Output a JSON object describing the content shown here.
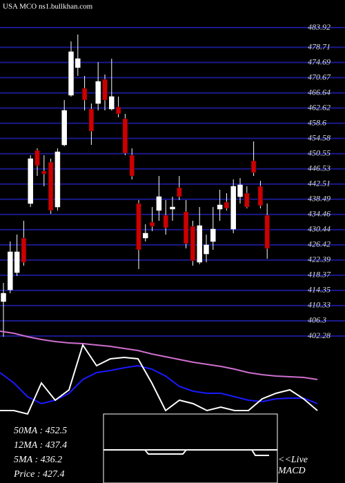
{
  "chart_data": [
    {
      "type": "candlestick",
      "title": "USA MCO ns1.bullkhan.com",
      "categories": [
        null,
        null,
        null,
        null,
        null,
        null,
        null,
        null,
        null,
        null,
        null,
        null,
        null,
        null,
        null,
        null,
        null,
        null,
        null,
        null,
        null,
        null,
        null,
        null,
        null,
        null,
        null,
        null,
        null,
        null,
        null,
        null,
        null,
        null,
        null,
        null,
        null,
        null,
        null,
        null
      ],
      "open": [
        411.41,
        414.51,
        419.08,
        428.22,
        437.35,
        451.41,
        445.93,
        448.3,
        436.43,
        452.87,
        466.02,
        473.33,
        467.85,
        462.37,
        463.83,
        470.22,
        462.37,
        462.92,
        459.81,
        450.13,
        437.35,
        428.22,
        432.41,
        435.52,
        434.24,
        435.88,
        441.55,
        435.16,
        431.32,
        421.82,
        424.01,
        427.3,
        435.88,
        437.71,
        430.59,
        439.17,
        440.09,
        448.67,
        441.91,
        434.24
      ],
      "high": [
        416.34,
        427.3,
        429.13,
        432.78,
        450.13,
        451.96,
        450.13,
        449.22,
        451.96,
        464.74,
        480.27,
        482.09,
        471.14,
        463.83,
        474.79,
        471.5,
        475.7,
        465.66,
        461.09,
        451.96,
        438.26,
        431.87,
        436.43,
        444.65,
        438.26,
        439.17,
        444.65,
        438.26,
        432.78,
        436.43,
        429.13,
        436.43,
        441.0,
        440.09,
        443.74,
        444.1,
        441.91,
        453.78,
        443.37,
        437.35
      ],
      "low": [
        402.09,
        413.6,
        418.17,
        420.91,
        436.43,
        444.65,
        441.91,
        434.61,
        435.52,
        452.5,
        465.66,
        471.14,
        462.0,
        452.87,
        462.0,
        462.0,
        462.0,
        460.18,
        450.13,
        443.74,
        419.99,
        427.3,
        430.04,
        432.78,
        429.13,
        432.78,
        438.26,
        425.47,
        420.91,
        421.27,
        421.82,
        425.11,
        432.78,
        435.52,
        429.49,
        437.35,
        436.07,
        444.65,
        436.07,
        422.73
      ],
      "close": [
        413.6,
        424.56,
        424.56,
        421.82,
        449.22,
        447.39,
        445.2,
        435.52,
        451.04,
        462.0,
        477.53,
        475.7,
        464.74,
        456.52,
        469.67,
        464.74,
        465.66,
        461.09,
        450.68,
        444.65,
        425.11,
        429.49,
        431.32,
        439.17,
        430.95,
        436.43,
        439.17,
        426.75,
        422.19,
        431.5,
        426.39,
        430.59,
        436.98,
        436.07,
        441.91,
        442.28,
        436.43,
        445.56,
        436.8,
        425.47
      ],
      "up_color": "#ffffff",
      "down_color": "#cc0000",
      "grid_color": "#1a1a8c",
      "ylim": [
        402.28,
        483.92
      ],
      "yticks": [
        483.92,
        478.71,
        474.69,
        470.67,
        466.64,
        462.62,
        458.6,
        454.58,
        450.55,
        446.53,
        442.51,
        438.49,
        434.46,
        430.44,
        426.42,
        422.39,
        418.37,
        414.35,
        410.33,
        406.3,
        402.28
      ],
      "grid": true
    },
    {
      "type": "line",
      "categories": [
        null,
        null,
        null,
        null,
        null,
        null,
        null,
        null,
        null,
        null,
        null,
        null,
        null,
        null,
        null,
        null,
        null,
        null,
        null,
        null,
        null,
        null,
        null,
        null
      ],
      "ylim": [
        0,
        120
      ],
      "series": [
        {
          "color": "#d070d0",
          "values": [
            120,
            117,
            112,
            108,
            105,
            103,
            102,
            100,
            98,
            95,
            92,
            87,
            83,
            79,
            75,
            72,
            69,
            65,
            60,
            57,
            55,
            54,
            53,
            50
          ]
        },
        {
          "color": "#1a1aff",
          "values": [
            60,
            45,
            25,
            15,
            20,
            30,
            50,
            60,
            63,
            67,
            70,
            65,
            55,
            40,
            33,
            30,
            30,
            25,
            20,
            18,
            22,
            23,
            23,
            15
          ]
        },
        {
          "color": "#ffffff",
          "values": [
            5,
            5,
            0,
            45,
            20,
            35,
            100,
            70,
            80,
            82,
            80,
            45,
            5,
            20,
            15,
            5,
            10,
            5,
            5,
            22,
            30,
            35,
            22,
            5
          ]
        }
      ]
    }
  ],
  "info": {
    "lines": [
      "50MA : 452.5",
      "12MA : 437.4",
      "5MA : 436.2",
      "Price   : 427.4"
    ],
    "macd_label": [
      "<<Live",
      "MACD"
    ]
  }
}
